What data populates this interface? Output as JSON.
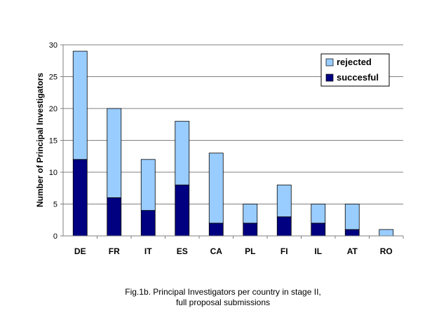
{
  "chart_data": {
    "type": "bar",
    "stacked": true,
    "categories": [
      "DE",
      "FR",
      "IT",
      "ES",
      "CA",
      "PL",
      "FI",
      "IL",
      "AT",
      "RO"
    ],
    "series": [
      {
        "name": "succesful",
        "values": [
          12,
          6,
          4,
          8,
          2,
          2,
          3,
          2,
          1,
          0
        ],
        "color": "#000080"
      },
      {
        "name": "rejected",
        "values": [
          17,
          14,
          8,
          10,
          11,
          3,
          5,
          3,
          4,
          1
        ],
        "color": "#99CCFF"
      }
    ],
    "ylabel": "Number of Principal Investigators",
    "ylim": [
      0,
      30
    ],
    "yticks": [
      0,
      5,
      10,
      15,
      20,
      25,
      30
    ],
    "grid": true,
    "legend": {
      "placement": "top-right",
      "entries": [
        "rejected",
        "succesful"
      ]
    },
    "caption": {
      "line1": "Fig.1b. Principal Investigators per country in stage II,",
      "line2": "full proposal submissions"
    }
  }
}
